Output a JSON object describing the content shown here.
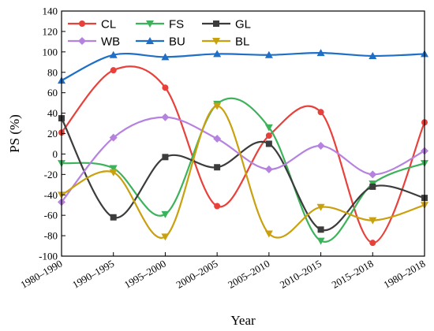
{
  "chart_data": {
    "type": "line",
    "title": "",
    "xlabel": "Year",
    "ylabel": "PS (%)",
    "ylim": [
      -100,
      140
    ],
    "yticks": [
      -100,
      -80,
      -60,
      -40,
      -20,
      0,
      20,
      40,
      60,
      80,
      100,
      120,
      140
    ],
    "grid": false,
    "legend_position": "top-left",
    "categories": [
      "1980–1990",
      "1990–1995",
      "1995–2000",
      "2000–2005",
      "2005–2010",
      "2010–2015",
      "2015–2018",
      "1980–2018"
    ],
    "series": [
      {
        "name": "CL",
        "color": "#e8413b",
        "marker": "circle",
        "values": [
          21,
          82,
          65,
          -51,
          18,
          41,
          -87,
          31
        ]
      },
      {
        "name": "FS",
        "color": "#3cb35a",
        "marker": "triangle-down",
        "values": [
          -9,
          -14,
          -59,
          49,
          26,
          -85,
          -29,
          -9
        ]
      },
      {
        "name": "GL",
        "color": "#3c3c3c",
        "marker": "square",
        "values": [
          35,
          -62,
          -3,
          -13,
          10,
          -74,
          -32,
          -43
        ]
      },
      {
        "name": "WB",
        "color": "#b682e0",
        "marker": "diamond",
        "values": [
          -47,
          16,
          36,
          15,
          -15,
          8,
          -20,
          3
        ]
      },
      {
        "name": "BU",
        "color": "#1f6fc6",
        "marker": "triangle-up",
        "values": [
          72,
          97,
          95,
          98,
          97,
          99,
          96,
          98
        ]
      },
      {
        "name": "BL",
        "color": "#c9a00e",
        "marker": "triangle-down",
        "values": [
          -40,
          -18,
          -81,
          47,
          -78,
          -52,
          -65,
          -50
        ]
      }
    ]
  }
}
